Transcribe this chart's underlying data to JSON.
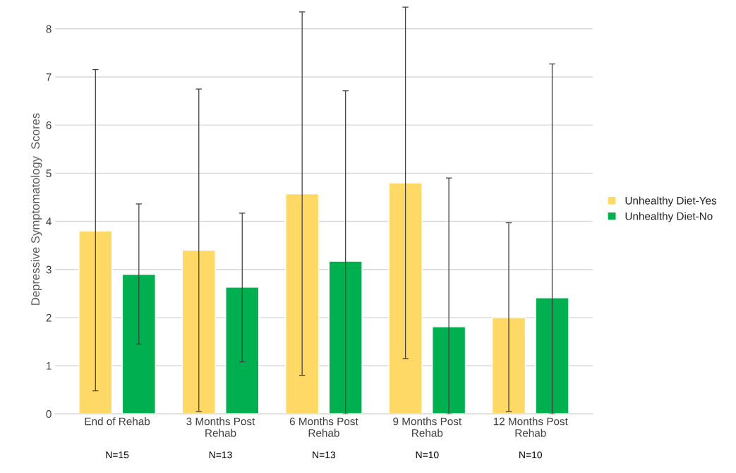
{
  "chart_data": {
    "type": "bar",
    "ylabel": "Depressive Symptomatology  Scores",
    "categories": [
      "End of Rehab",
      "3 Months Post\nRehab",
      "6 Months Post\nRehab",
      "9 Months Post\nRehab",
      "12 Months Post\nRehab"
    ],
    "series": [
      {
        "name": "Unhealthy Diet-Yes",
        "color": "#ffd966",
        "values": [
          3.8,
          3.4,
          4.57,
          4.8,
          2.0
        ],
        "errors": [
          [
            0.48,
            7.15
          ],
          [
            0.05,
            6.75
          ],
          [
            0.8,
            8.35
          ],
          [
            1.15,
            8.45
          ],
          [
            0.05,
            3.97
          ]
        ]
      },
      {
        "name": "Unhealthy Diet-No",
        "color": "#00b050",
        "values": [
          2.9,
          2.63,
          3.17,
          1.81,
          2.41
        ],
        "errors": [
          [
            1.45,
            4.36
          ],
          [
            1.08,
            4.17
          ],
          [
            0.0,
            6.71
          ],
          [
            0.0,
            4.9
          ],
          [
            0.0,
            7.27
          ]
        ]
      }
    ],
    "annotations": [
      "N=15",
      "N=13",
      "N=13",
      "N=10",
      "N=10"
    ],
    "ylim": [
      0,
      8.5
    ],
    "yticks": [
      0,
      1,
      2,
      3,
      4,
      5,
      6,
      7,
      8
    ],
    "grid": "y",
    "legend": "right"
  }
}
